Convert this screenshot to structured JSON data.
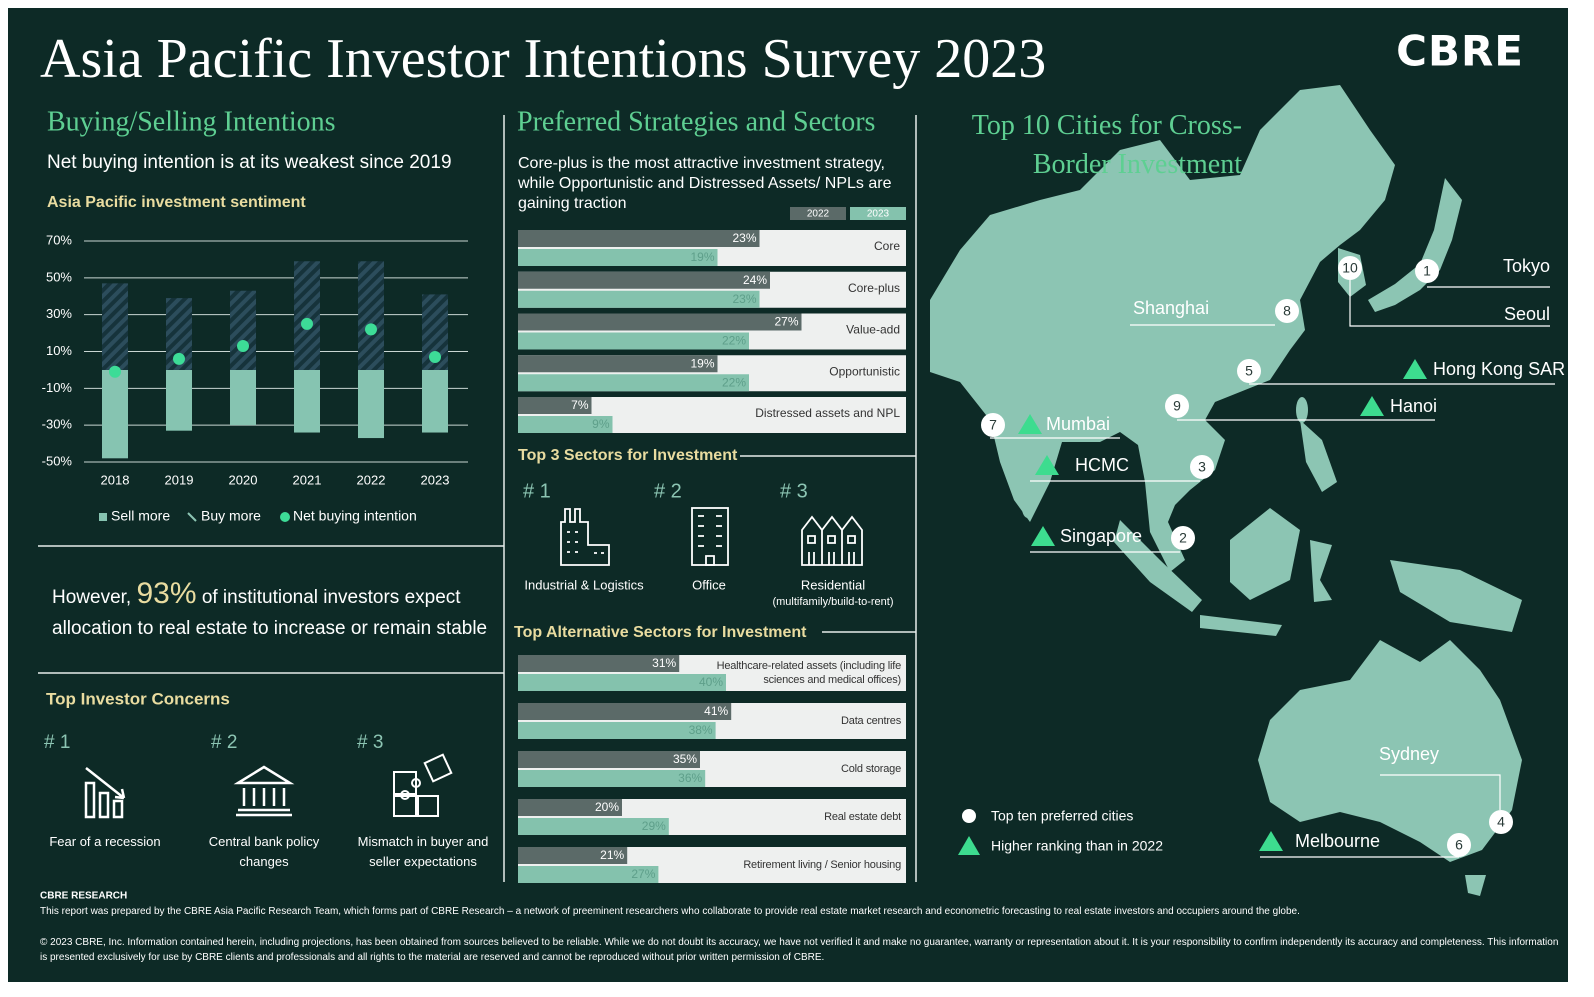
{
  "header": {
    "title": "Asia Pacific Investor Intentions Survey 2023",
    "logo": "CBRE"
  },
  "buying_selling": {
    "heading": "Buying/Selling Intentions",
    "subheading": "Net buying intention is at its weakest since 2019",
    "statement": {
      "prefix": "However,",
      "highlight": "93%",
      "suffix": "of institutional investors expect allocation to real estate to increase or remain stable"
    },
    "concerns": {
      "heading": "Top Investor Concerns",
      "items": [
        {
          "rank": "# 1",
          "label": "Fear of a recession"
        },
        {
          "rank": "# 2",
          "label": "Central bank policy changes"
        },
        {
          "rank": "# 3",
          "label": "Mismatch in buyer and seller expectations"
        }
      ]
    }
  },
  "strategies": {
    "heading": "Preferred Strategies and Sectors",
    "description": "Core-plus is the most attractive investment strategy, while Opportunistic and Distressed Assets/ NPLs are gaining traction",
    "sectors": {
      "heading": "Top 3 Sectors for Investment",
      "items": [
        {
          "rank": "# 1",
          "label": "Industrial & Logistics"
        },
        {
          "rank": "# 2",
          "label": "Office"
        },
        {
          "rank": "# 3",
          "label": "Residential",
          "note": "(multifamily/build-to-rent)"
        }
      ]
    },
    "alternatives_heading": "Top Alternative Sectors for Investment"
  },
  "cities": {
    "heading": "Top 10 Cities for Cross-Border Investment",
    "legend": {
      "preferred": "Top ten preferred cities",
      "higher": "Higher ranking than in 2022"
    },
    "items": [
      {
        "name": "Tokyo",
        "rank": 1,
        "higher": false
      },
      {
        "name": "Singapore",
        "rank": 2,
        "higher": true
      },
      {
        "name": "HCMC",
        "rank": 3,
        "higher": true
      },
      {
        "name": "Sydney",
        "rank": 4,
        "higher": false
      },
      {
        "name": "Hong Kong SAR",
        "rank": 5,
        "higher": true
      },
      {
        "name": "Melbourne",
        "rank": 6,
        "higher": true
      },
      {
        "name": "Mumbai",
        "rank": 7,
        "higher": true
      },
      {
        "name": "Shanghai",
        "rank": 8,
        "higher": false
      },
      {
        "name": "Hanoi",
        "rank": 9,
        "higher": true
      },
      {
        "name": "Seoul",
        "rank": 10,
        "higher": false
      }
    ]
  },
  "footer": {
    "label": "CBRE RESEARCH",
    "note": "This report was prepared by the CBRE Asia Pacific Research Team, which forms part of CBRE Research – a network of preeminent researchers who collaborate to provide real estate market research and econometric forecasting to real estate investors and occupiers around the globe.",
    "copyright": "© 2023 CBRE, Inc. Information contained herein, including projections, has been obtained from sources believed to be reliable. While we do not doubt its accuracy, we have not verified it and make no guarantee, warranty or representation about it. It is your responsibility to confirm independently its accuracy and completeness. This information is presented exclusively for use by CBRE clients and professionals and all rights to the material are reserved and cannot be reproduced without prior written permission of CBRE."
  },
  "chart_data": [
    {
      "type": "bar",
      "title": "Asia Pacific investment sentiment",
      "categories": [
        "2018",
        "2019",
        "2020",
        "2021",
        "2022",
        "2023"
      ],
      "series": [
        {
          "name": "Sell more",
          "type": "bar",
          "color": "#86c4b1",
          "values": [
            -48,
            -33,
            -30,
            -34,
            -37,
            -34
          ]
        },
        {
          "name": "Buy more",
          "type": "bar",
          "hatch": true,
          "color": "#2c4d5c",
          "values": [
            47,
            39,
            43,
            59,
            59,
            41
          ]
        },
        {
          "name": "Net buying intention",
          "type": "scatter",
          "color": "#3ddc97",
          "values": [
            -1,
            6,
            13,
            25,
            22,
            7
          ]
        }
      ],
      "ylim": [
        -50,
        70
      ],
      "yticks": [
        {
          "value": -50,
          "label": "-50%"
        },
        {
          "value": -30,
          "label": "-30%"
        },
        {
          "value": -10,
          "label": "-10%"
        },
        {
          "value": 10,
          "label": "10%"
        },
        {
          "value": 30,
          "label": "30%"
        },
        {
          "value": 50,
          "label": "50%"
        },
        {
          "value": 70,
          "label": "70%"
        }
      ],
      "grid": true
    },
    {
      "type": "bar",
      "orientation": "horizontal",
      "categories": [
        "Core",
        "Core-plus",
        "Value-add",
        "Opportunistic",
        "Distressed assets and NPL"
      ],
      "series": [
        {
          "name": "2022",
          "color": "#5b6a68",
          "values": [
            23,
            24,
            27,
            19,
            7
          ],
          "value_labels": [
            "23%",
            "24%",
            "27%",
            "19%",
            "7%"
          ]
        },
        {
          "name": "2023",
          "color": "#84c2ad",
          "values": [
            19,
            23,
            22,
            22,
            9
          ],
          "value_labels": [
            "19%",
            "23%",
            "22%",
            "22%",
            "9%"
          ]
        }
      ]
    },
    {
      "type": "bar",
      "orientation": "horizontal",
      "categories": [
        "Healthcare-related assets (including life sciences and medical offices)",
        "Data centres",
        "Cold storage",
        "Real estate debt",
        "Retirement living / Senior housing"
      ],
      "series": [
        {
          "name": "2022",
          "color": "#5b6a68",
          "values": [
            31,
            41,
            35,
            20,
            21
          ],
          "value_labels": [
            "31%",
            "41%",
            "35%",
            "20%",
            "21%"
          ]
        },
        {
          "name": "2023",
          "color": "#84c2ad",
          "values": [
            40,
            38,
            36,
            29,
            27
          ],
          "value_labels": [
            "40%",
            "38%",
            "36%",
            "29%",
            "27%"
          ]
        }
      ]
    }
  ]
}
